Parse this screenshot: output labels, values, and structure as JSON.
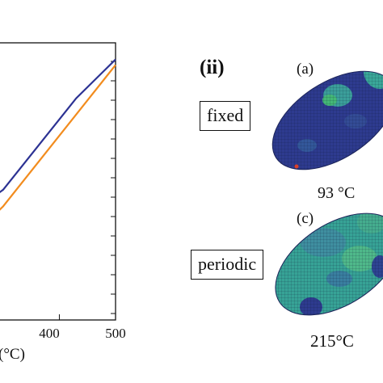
{
  "chart_data": {
    "type": "line",
    "xlabel": "(°C)",
    "ylabel": "",
    "xlim": [
      280,
      500
    ],
    "x_ticks": [
      400,
      500
    ],
    "x_tick_labels": [
      "400",
      "500"
    ],
    "series": [
      {
        "color": "#2c3293",
        "x": [
          280,
          300,
          430,
          500
        ],
        "y": [
          0.44,
          0.47,
          0.8,
          0.94
        ]
      },
      {
        "color": "#f28c1e",
        "x": [
          280,
          300,
          500
        ],
        "y": [
          0.37,
          0.41,
          0.92
        ]
      }
    ]
  },
  "panel_ii": {
    "label": "(ii)",
    "sub_a": "(a)",
    "sub_c": "(c)",
    "box_fixed": "fixed",
    "box_periodic": "periodic",
    "temp_a": "93 °C",
    "temp_c": "215°C"
  },
  "colors": {
    "mesh_blue": "#2e3b8f",
    "mesh_teal": "#3aa899",
    "mesh_green": "#44b876"
  }
}
